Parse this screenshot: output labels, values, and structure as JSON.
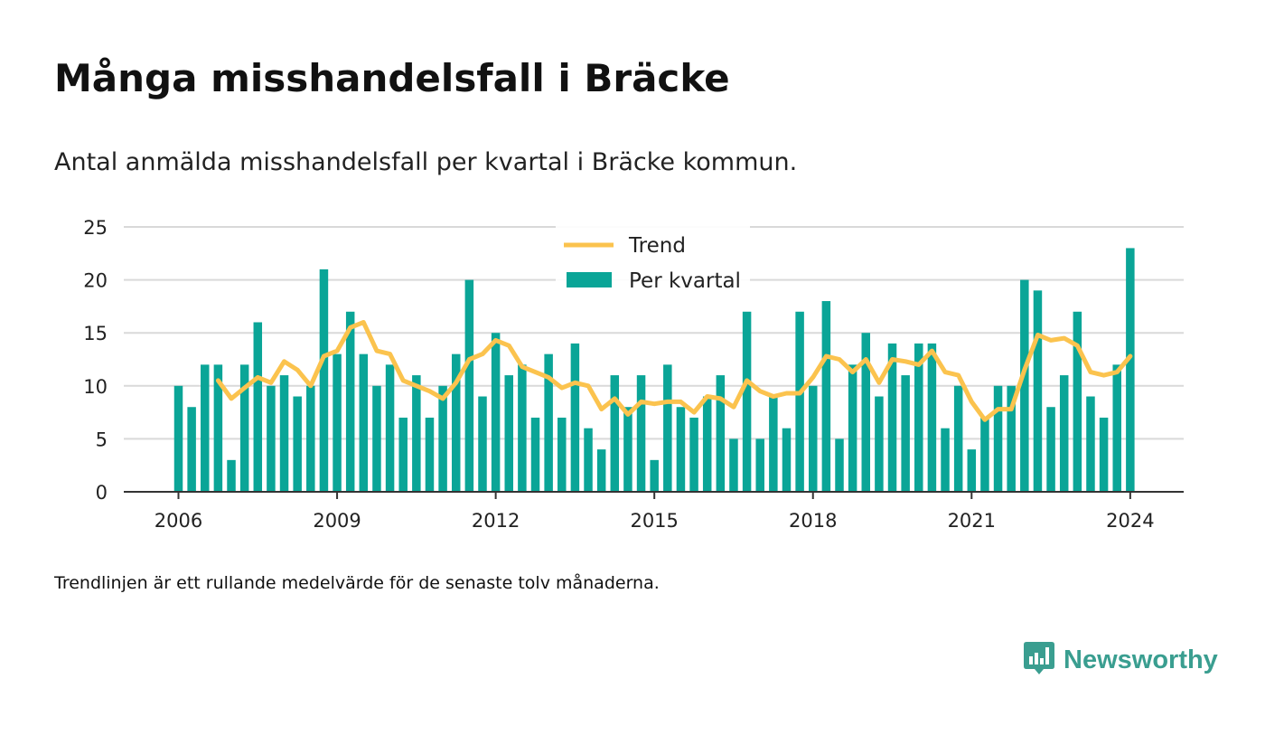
{
  "title": "Många misshandelsfall i Bräcke",
  "subtitle": "Antal anmälda misshandelsfall per kvartal i Bräcke kommun.",
  "note": "Trendlinjen är ett rullande medelvärde för de senaste tolv månaderna.",
  "brand": {
    "name": "Newsworthy"
  },
  "colors": {
    "bars": "#0aa597",
    "trend": "#fbc34e",
    "brand": "#3a9e90"
  },
  "chart_data": {
    "type": "bar",
    "title": "Många misshandelsfall i Bräcke",
    "subtitle": "Antal anmälda misshandelsfall per kvartal i Bräcke kommun.",
    "xlabel": "",
    "ylabel": "",
    "ylim": [
      0,
      25
    ],
    "yticks": [
      0,
      5,
      10,
      15,
      20,
      25
    ],
    "xticks": [
      "2006",
      "2009",
      "2012",
      "2015",
      "2018",
      "2021",
      "2024"
    ],
    "grid": true,
    "legend": "top-center",
    "x_start": {
      "year": 2006,
      "quarter": 1
    },
    "series": [
      {
        "name": "Per kvartal",
        "type": "bar",
        "values": [
          10,
          8,
          12,
          12,
          3,
          12,
          16,
          10,
          11,
          9,
          10,
          21,
          13,
          17,
          13,
          10,
          12,
          7,
          11,
          7,
          10,
          13,
          20,
          9,
          15,
          11,
          12,
          7,
          13,
          7,
          14,
          6,
          4,
          11,
          8,
          11,
          3,
          12,
          8,
          7,
          9,
          11,
          5,
          17,
          5,
          9,
          6,
          17,
          10,
          18,
          5,
          12,
          15,
          9,
          14,
          11,
          14,
          14,
          6,
          10,
          4,
          7,
          10,
          10,
          20,
          19,
          8,
          11,
          17,
          9,
          7,
          12,
          23
        ]
      },
      {
        "name": "Trend",
        "type": "line",
        "start_index": 3,
        "values": [
          10.5,
          8.8,
          9.8,
          10.8,
          10.3,
          12.3,
          11.5,
          10.0,
          12.8,
          13.3,
          15.5,
          16.0,
          13.3,
          13.0,
          10.5,
          10.0,
          9.5,
          8.8,
          10.3,
          12.5,
          13.0,
          14.3,
          13.8,
          11.8,
          11.3,
          10.8,
          9.8,
          10.3,
          10.0,
          7.8,
          8.8,
          7.3,
          8.5,
          8.3,
          8.5,
          8.5,
          7.5,
          9.0,
          8.8,
          8.0,
          10.5,
          9.5,
          9.0,
          9.3,
          9.3,
          10.8,
          12.8,
          12.5,
          11.3,
          12.5,
          10.3,
          12.5,
          12.3,
          12.0,
          13.3,
          11.3,
          11.0,
          8.5,
          6.8,
          7.8,
          7.8,
          11.5,
          14.8,
          14.3,
          14.5,
          13.8,
          11.3,
          11.0,
          11.3,
          12.8
        ]
      }
    ]
  }
}
